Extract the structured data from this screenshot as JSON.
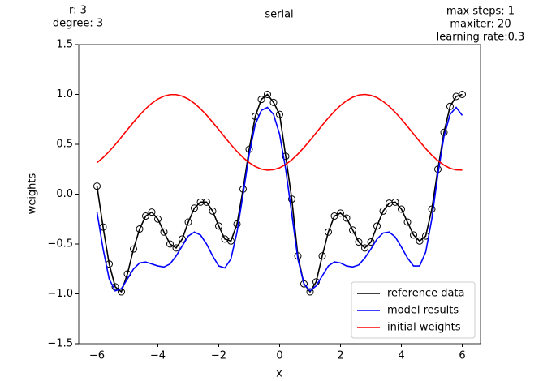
{
  "chart_data": {
    "type": "line",
    "title": "serial",
    "left_annotation": [
      "r: 3",
      "degree: 3"
    ],
    "right_annotation": [
      "max steps: 1",
      "maxiter: 20",
      "learning rate:0.3"
    ],
    "x_label": "x",
    "y_label": "weights",
    "xlim": [
      -6.6,
      6.6
    ],
    "ylim": [
      -1.5,
      1.5
    ],
    "xticks": [
      {
        "value": -6,
        "label": "−6"
      },
      {
        "value": -4,
        "label": "−4"
      },
      {
        "value": -2,
        "label": "−2"
      },
      0,
      2,
      4,
      6
    ],
    "yticks": [
      {
        "value": -1.5,
        "label": "−1.5"
      },
      {
        "value": -1.0,
        "label": "−1.0"
      },
      {
        "value": -0.5,
        "label": "−0.5"
      },
      {
        "value": 0.0,
        "label": "0.0"
      },
      0.5,
      {
        "value": 1.0,
        "label": "1.0"
      },
      1.5
    ],
    "legend": "lower right",
    "x": [
      -6.0,
      -5.8,
      -5.6,
      -5.4,
      -5.2,
      -5.0,
      -4.8,
      -4.6,
      -4.4,
      -4.2,
      -4.0,
      -3.8,
      -3.6,
      -3.4,
      -3.2,
      -3.0,
      -2.8,
      -2.6,
      -2.4,
      -2.2,
      -2.0,
      -1.8,
      -1.6,
      -1.4,
      -1.2,
      -1.0,
      -0.8,
      -0.6,
      -0.4,
      -0.2,
      0.0,
      0.2,
      0.4,
      0.6,
      0.8,
      1.0,
      1.2,
      1.4,
      1.6,
      1.8,
      2.0,
      2.2,
      2.4,
      2.6,
      2.8,
      3.0,
      3.2,
      3.4,
      3.6,
      3.8,
      4.0,
      4.2,
      4.4,
      4.6,
      4.8,
      5.0,
      5.2,
      5.4,
      5.6,
      5.8,
      6.0
    ],
    "series": [
      {
        "name": "reference data",
        "color": "#000000",
        "marker": "o",
        "values": [
          0.08,
          -0.33,
          -0.7,
          -0.93,
          -0.98,
          -0.8,
          -0.55,
          -0.35,
          -0.22,
          -0.18,
          -0.25,
          -0.38,
          -0.5,
          -0.54,
          -0.45,
          -0.28,
          -0.14,
          -0.08,
          -0.08,
          -0.17,
          -0.32,
          -0.45,
          -0.47,
          -0.3,
          0.05,
          0.45,
          0.78,
          0.95,
          1.0,
          0.92,
          0.8,
          0.38,
          -0.05,
          -0.62,
          -0.9,
          -0.98,
          -0.88,
          -0.62,
          -0.38,
          -0.22,
          -0.19,
          -0.24,
          -0.36,
          -0.48,
          -0.54,
          -0.48,
          -0.32,
          -0.17,
          -0.09,
          -0.08,
          -0.15,
          -0.28,
          -0.41,
          -0.47,
          -0.42,
          -0.15,
          0.25,
          0.62,
          0.88,
          0.98,
          1.0
        ]
      },
      {
        "name": "model results",
        "color": "#0000ff",
        "values": [
          -0.18,
          -0.55,
          -0.85,
          -0.97,
          -0.95,
          -0.85,
          -0.75,
          -0.69,
          -0.68,
          -0.7,
          -0.72,
          -0.73,
          -0.7,
          -0.62,
          -0.52,
          -0.42,
          -0.38,
          -0.41,
          -0.5,
          -0.62,
          -0.72,
          -0.74,
          -0.65,
          -0.38,
          0.0,
          0.4,
          0.7,
          0.84,
          0.87,
          0.8,
          0.6,
          0.25,
          -0.2,
          -0.65,
          -0.9,
          -0.97,
          -0.92,
          -0.82,
          -0.72,
          -0.68,
          -0.69,
          -0.72,
          -0.73,
          -0.71,
          -0.64,
          -0.55,
          -0.45,
          -0.39,
          -0.38,
          -0.43,
          -0.53,
          -0.64,
          -0.72,
          -0.72,
          -0.58,
          -0.25,
          0.2,
          0.58,
          0.8,
          0.87,
          0.79
        ]
      },
      {
        "name": "initial weights",
        "color": "#ff0000",
        "values": [
          0.316,
          0.367,
          0.428,
          0.497,
          0.571,
          0.647,
          0.721,
          0.793,
          0.856,
          0.911,
          0.954,
          0.983,
          0.998,
          0.998,
          0.983,
          0.954,
          0.911,
          0.856,
          0.793,
          0.721,
          0.647,
          0.571,
          0.497,
          0.428,
          0.367,
          0.316,
          0.277,
          0.251,
          0.24,
          0.245,
          0.264,
          0.298,
          0.344,
          0.402,
          0.468,
          0.54,
          0.615,
          0.691,
          0.764,
          0.831,
          0.889,
          0.937,
          0.972,
          0.994,
          1.0,
          0.991,
          0.968,
          0.93,
          0.88,
          0.82,
          0.752,
          0.679,
          0.604,
          0.529,
          0.457,
          0.391,
          0.335,
          0.291,
          0.259,
          0.243,
          0.241
        ]
      }
    ]
  }
}
